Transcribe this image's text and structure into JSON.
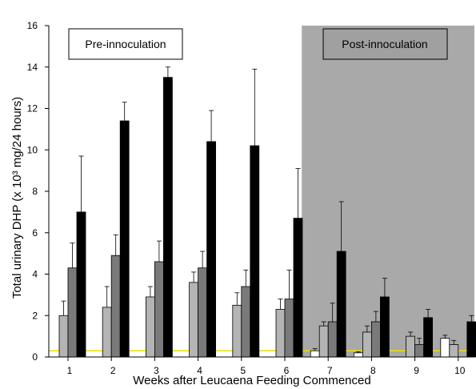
{
  "chart_data": {
    "type": "bar",
    "xlabel": "Weeks  after Leucaena Feeding Commenced",
    "ylabel": "Total urinary DHP (x 10³ mg/24 hours)",
    "ylim": [
      0,
      16
    ],
    "yticks": [
      "0",
      "2",
      "4",
      "6",
      "8",
      "10",
      "12",
      "14",
      "16"
    ],
    "categories": [
      "1",
      "2",
      "3",
      "4",
      "5",
      "6",
      "7",
      "8",
      "9",
      "10"
    ],
    "series": [
      {
        "color": "#ffffff",
        "values": [
          null,
          null,
          null,
          null,
          null,
          null,
          0.3,
          0.2,
          null,
          0.9
        ],
        "errors": [
          null,
          null,
          null,
          null,
          null,
          null,
          0.1,
          0.05,
          null,
          0.15
        ]
      },
      {
        "color": "#b4b4b4",
        "values": [
          2.0,
          2.4,
          2.9,
          3.6,
          2.5,
          2.3,
          1.5,
          1.2,
          1.0,
          0.6
        ],
        "errors": [
          0.7,
          1.0,
          0.5,
          0.5,
          0.6,
          0.5,
          0.2,
          0.3,
          0.2,
          0.2
        ]
      },
      {
        "color": "#7a7a7a",
        "values": [
          4.3,
          4.9,
          4.6,
          4.3,
          3.4,
          2.8,
          1.7,
          1.7,
          0.6,
          null
        ],
        "errors": [
          1.2,
          1.0,
          1.0,
          0.8,
          0.8,
          1.4,
          0.9,
          0.5,
          0.3,
          null
        ]
      },
      {
        "color": "#000000",
        "values": [
          7.0,
          11.4,
          13.5,
          10.4,
          10.2,
          6.7,
          5.1,
          2.9,
          1.9,
          1.7
        ],
        "errors": [
          2.7,
          0.9,
          0.5,
          1.5,
          3.7,
          2.4,
          2.4,
          0.9,
          0.4,
          0.3
        ]
      }
    ],
    "threshold": {
      "value": 0.3,
      "color": "#e8e000"
    },
    "annotations": [
      {
        "text": "Pre-innoculation",
        "style": "boxed"
      },
      {
        "text": "Post-innoculation",
        "style": "boxed-gray"
      }
    ],
    "shaded_region": {
      "from_category": "7",
      "color": "#a9a9a9"
    },
    "grid": false
  }
}
